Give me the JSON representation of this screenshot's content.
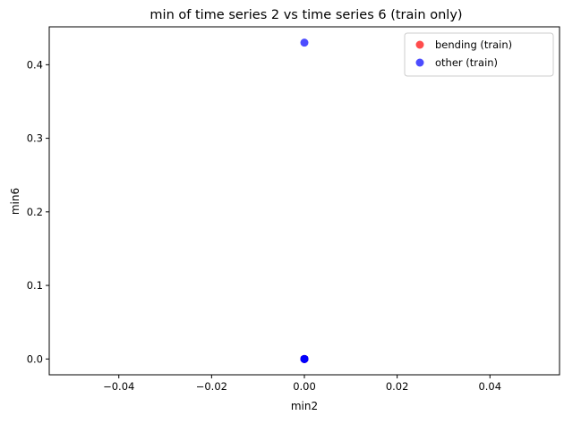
{
  "chart_data": {
    "type": "scatter",
    "title": "min of time series 2 vs time series 6 (train only)",
    "xlabel": "min2",
    "ylabel": "min6",
    "xlim": [
      -0.055,
      0.055
    ],
    "ylim": [
      -0.0215,
      0.4515
    ],
    "xticks": [
      -0.04,
      -0.02,
      0.0,
      0.02,
      0.04
    ],
    "xtick_labels": [
      "−0.04",
      "−0.02",
      "0.00",
      "0.02",
      "0.04"
    ],
    "yticks": [
      0.0,
      0.1,
      0.2,
      0.3,
      0.4
    ],
    "ytick_labels": [
      "0.0",
      "0.1",
      "0.2",
      "0.3",
      "0.4"
    ],
    "grid": false,
    "legend_position": "top-right",
    "series": [
      {
        "name": "bending (train)",
        "color": "#ff0000",
        "opacity": 0.7,
        "points": [
          {
            "x": 0.0,
            "y": 0.0
          },
          {
            "x": 0.0,
            "y": 0.0
          },
          {
            "x": 0.0,
            "y": 0.0
          }
        ]
      },
      {
        "name": "other (train)",
        "color": "#0000ff",
        "opacity": 0.7,
        "points": [
          {
            "x": 0.0,
            "y": 0.0
          },
          {
            "x": 0.0,
            "y": 0.0
          },
          {
            "x": 0.0,
            "y": 0.0
          },
          {
            "x": 0.0,
            "y": 0.0
          },
          {
            "x": 0.0,
            "y": 0.43
          }
        ]
      }
    ]
  }
}
